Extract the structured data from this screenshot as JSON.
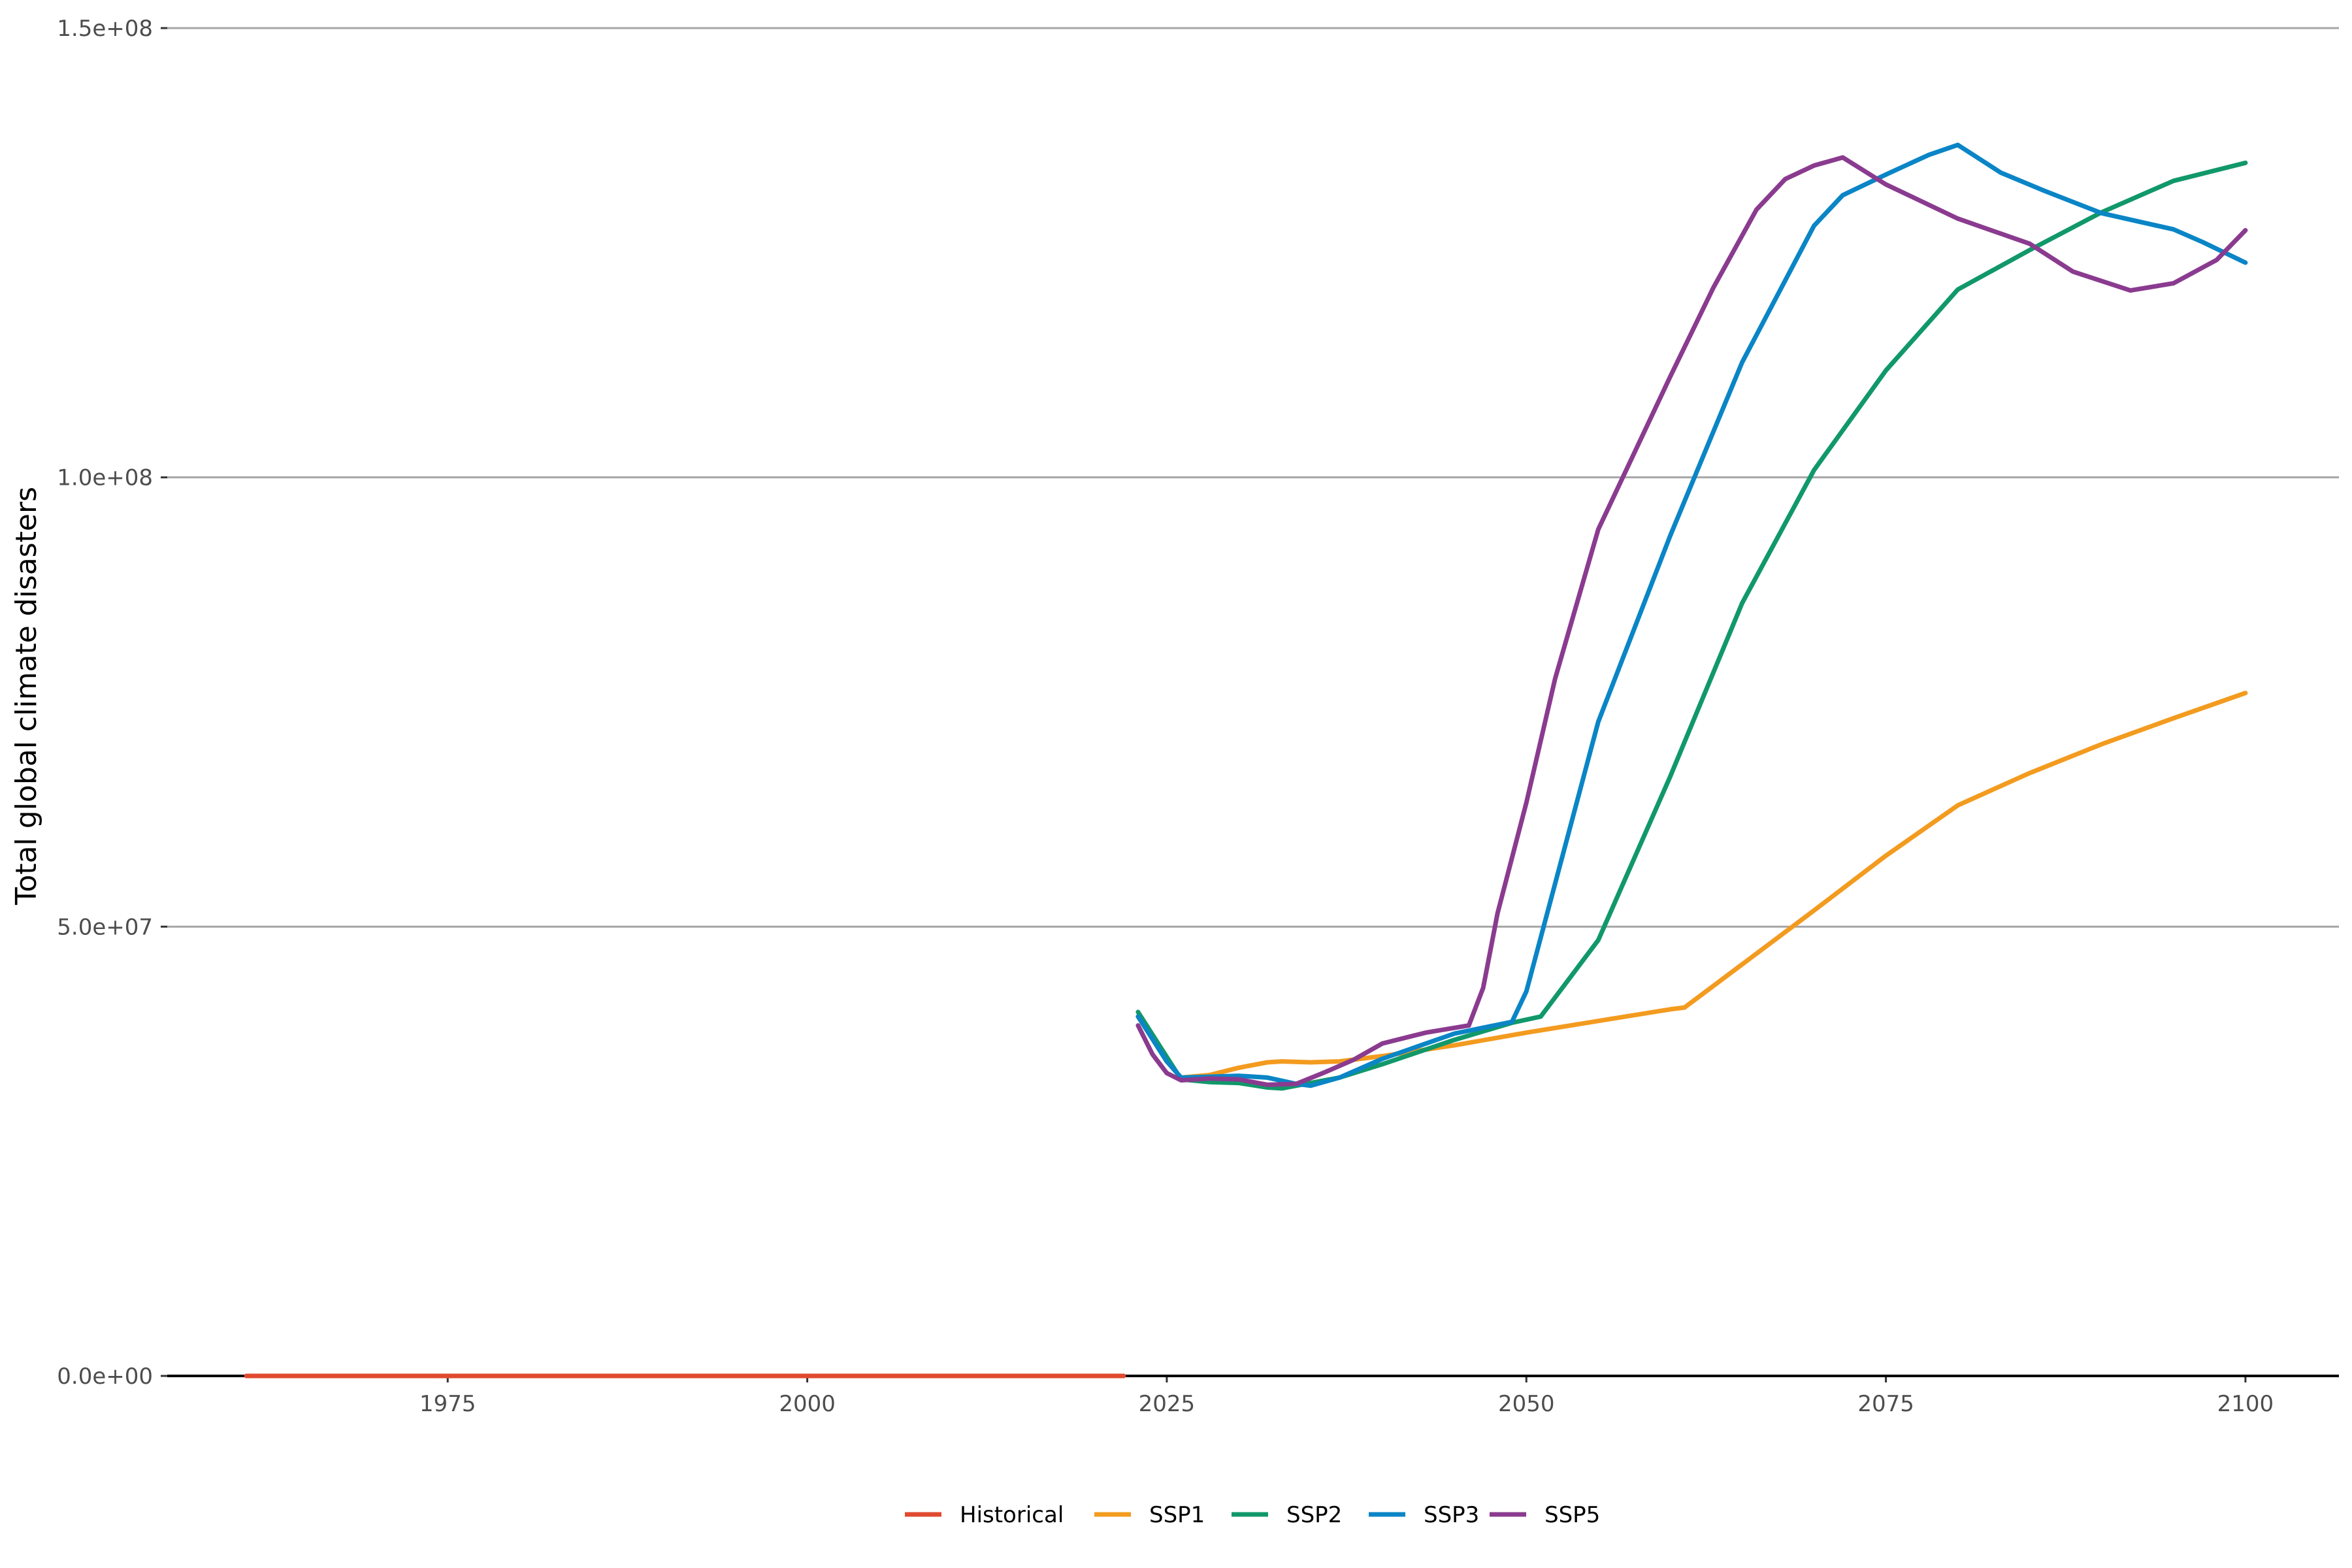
{
  "chart_data": {
    "type": "line",
    "title": "",
    "xlabel": "",
    "ylabel": "Total global climate disasters",
    "xlim": [
      1955.5,
      2106.5
    ],
    "ylim": [
      0,
      150000000
    ],
    "x_ticks": [
      1975,
      2000,
      2025,
      2050,
      2075,
      2100
    ],
    "x_tick_labels": [
      "1975",
      "2000",
      "2025",
      "2050",
      "2075",
      "2100"
    ],
    "y_ticks": [
      0,
      50000000,
      100000000,
      150000000
    ],
    "y_tick_labels": [
      "0.0e+00",
      "5.0e+07",
      "1.0e+08",
      "1.5e+08"
    ],
    "grid": "horizontal",
    "legend_position": "bottom",
    "series": [
      {
        "name": "Historical",
        "color": "#e04a2f",
        "x": [
          1961,
          1970,
          1980,
          1990,
          2000,
          2010,
          2022
        ],
        "values": [
          0,
          0,
          0,
          0,
          0,
          0,
          0
        ]
      },
      {
        "name": "SSP1",
        "color": "#f39b1f",
        "x": [
          2023,
          2025,
          2026,
          2028,
          2030,
          2032,
          2033,
          2035,
          2037,
          2040,
          2045,
          2050,
          2055,
          2060,
          2061,
          2065,
          2070,
          2075,
          2080,
          2085,
          2090,
          2095,
          2100
        ],
        "values": [
          40000000,
          35000000,
          33200000,
          33500000,
          34300000,
          34900000,
          35000000,
          34900000,
          35000000,
          35600000,
          36800000,
          38200000,
          39500000,
          40800000,
          41000000,
          45800000,
          51800000,
          57900000,
          63500000,
          67100000,
          70300000,
          73200000,
          76000000
        ]
      },
      {
        "name": "SSP2",
        "color": "#11986a",
        "x": [
          2023,
          2025,
          2026,
          2028,
          2030,
          2032,
          2033,
          2035,
          2037,
          2040,
          2045,
          2049,
          2051,
          2055,
          2060,
          2065,
          2070,
          2075,
          2080,
          2085,
          2090,
          2095,
          2100
        ],
        "values": [
          40500000,
          35500000,
          33000000,
          32700000,
          32600000,
          32100000,
          32000000,
          32600000,
          33200000,
          34700000,
          37400000,
          39300000,
          40000000,
          48500000,
          66700000,
          86000000,
          100800000,
          111900000,
          120900000,
          125300000,
          129500000,
          133000000,
          135000000
        ]
      },
      {
        "name": "SSP3",
        "color": "#0a85c6",
        "x": [
          2023,
          2025,
          2026,
          2028,
          2030,
          2032,
          2034,
          2035,
          2037,
          2040,
          2045,
          2049,
          2050,
          2055,
          2060,
          2065,
          2070,
          2072,
          2075,
          2078,
          2080,
          2083,
          2086,
          2090,
          2095,
          2097,
          2100
        ],
        "values": [
          40000000,
          35000000,
          33200000,
          33300000,
          33400000,
          33200000,
          32500000,
          32300000,
          33200000,
          35300000,
          38100000,
          39400000,
          42800000,
          72800000,
          93500000,
          112800000,
          128000000,
          131400000,
          133700000,
          135900000,
          137000000,
          133900000,
          131900000,
          129400000,
          127600000,
          126200000,
          123900000
        ]
      },
      {
        "name": "SSP5",
        "color": "#8a3b8f",
        "x": [
          2023,
          2024,
          2025,
          2026,
          2028,
          2030,
          2032,
          2034,
          2036,
          2038,
          2040,
          2043,
          2046,
          2047,
          2048,
          2050,
          2052,
          2055,
          2060,
          2063,
          2066,
          2068,
          2070,
          2072,
          2075,
          2080,
          2085,
          2088,
          2092,
          2095,
          2098,
          2100
        ],
        "values": [
          39000000,
          35800000,
          33700000,
          32900000,
          33100000,
          33000000,
          32400000,
          32500000,
          33800000,
          35200000,
          37000000,
          38200000,
          39000000,
          43200000,
          51500000,
          63800000,
          77600000,
          94200000,
          111200000,
          121100000,
          129800000,
          133200000,
          134700000,
          135600000,
          132600000,
          128800000,
          126000000,
          122900000,
          120800000,
          121600000,
          124200000,
          127500000
        ]
      }
    ]
  }
}
